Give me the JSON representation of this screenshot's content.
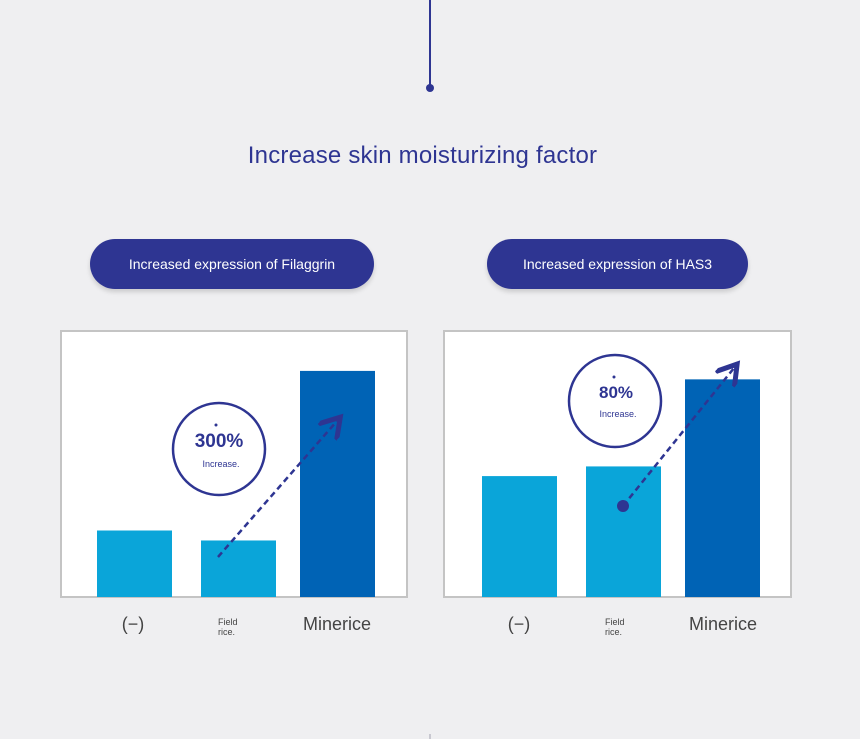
{
  "title": "Increase skin moisturizing factor",
  "colors": {
    "accent": "#2e3592",
    "bar_light": "#0aa5d9",
    "bar_dark": "#0063b5",
    "frame": "#c4c4c4"
  },
  "chart_data": [
    {
      "type": "bar",
      "title": "Increased expression of Filaggrin",
      "categories": [
        "(−)",
        "Field rice.",
        "Minerice"
      ],
      "values": [
        1.0,
        0.85,
        3.4
      ],
      "ylim": [
        0,
        4
      ],
      "annotation": {
        "value": "300%",
        "label": "Increase."
      },
      "grid": false,
      "legend": "none"
    },
    {
      "type": "bar",
      "title": "Increased expression of HAS3",
      "categories": [
        "(−)",
        "Field rice.",
        "Minerice"
      ],
      "values": [
        1.0,
        1.08,
        1.8
      ],
      "ylim": [
        0,
        2.2
      ],
      "annotation": {
        "value": "80%",
        "label": "Increase."
      },
      "grid": false,
      "legend": "none"
    }
  ],
  "labels": {
    "cat1": "(−)",
    "cat2_line1": "Field",
    "cat2_line2": "rice.",
    "cat3": "Minerice"
  }
}
